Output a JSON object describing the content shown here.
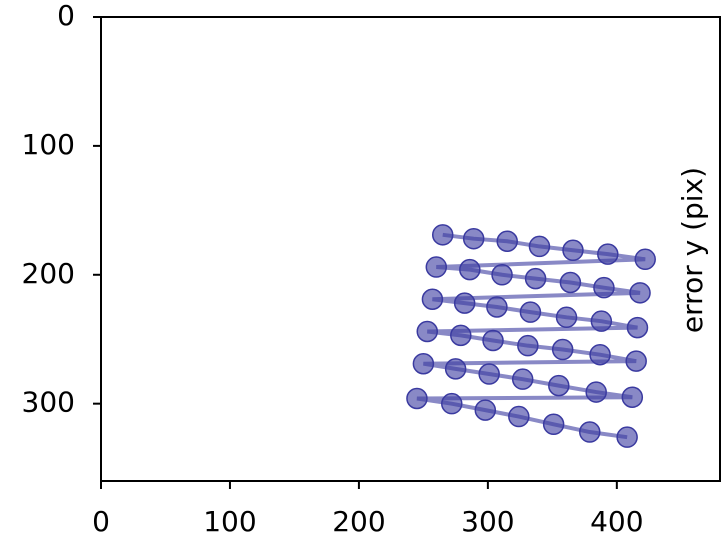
{
  "chart_data": {
    "type": "line",
    "y_label": "error y (pix)",
    "xlim": [
      0,
      480
    ],
    "ylim": [
      360,
      0
    ],
    "xticks": [
      0,
      100,
      200,
      300,
      400
    ],
    "yticks": [
      0,
      100,
      200,
      300
    ],
    "series": [
      {
        "color": "#3a3aa0",
        "markers": true,
        "x": [
          265,
          289,
          315,
          340,
          366,
          393,
          422,
          260,
          286,
          311,
          337,
          364,
          390,
          418,
          257,
          282,
          307,
          333,
          361,
          388,
          416,
          253,
          279,
          304,
          331,
          358,
          387,
          415,
          250,
          275,
          301,
          327,
          355,
          384,
          412,
          245,
          272,
          298,
          324,
          351,
          379,
          408
        ],
        "values": [
          169,
          172,
          174,
          178,
          181,
          184,
          188,
          194,
          196,
          200,
          203,
          206,
          210,
          214,
          219,
          222,
          225,
          229,
          233,
          236,
          241,
          244,
          247,
          251,
          255,
          258,
          262,
          267,
          269,
          273,
          277,
          281,
          286,
          291,
          295,
          296,
          300,
          305,
          310,
          316,
          322,
          326
        ]
      }
    ]
  }
}
